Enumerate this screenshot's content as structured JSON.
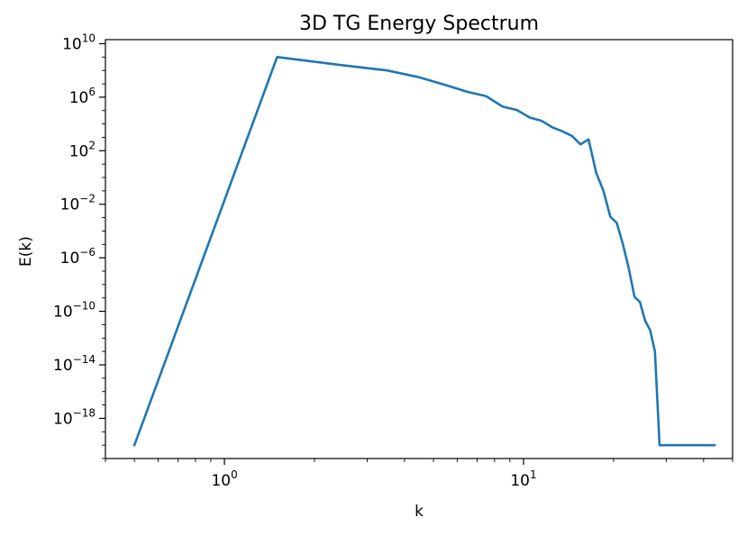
{
  "chart_data": {
    "type": "line",
    "title": "3D TG Energy Spectrum",
    "xlabel": "k",
    "ylabel": "E(k)",
    "xscale": "log",
    "yscale": "log",
    "xlim": [
      0.4,
      50
    ],
    "ylim": [
      1e-21,
      20000000000.0
    ],
    "grid": false,
    "legend": "none",
    "x_ticks": [
      {
        "value": 1,
        "base": "10",
        "exp": "0"
      },
      {
        "value": 10,
        "base": "10",
        "exp": "1"
      }
    ],
    "y_ticks": [
      {
        "value": 10000000000.0,
        "base": "10",
        "exp": "10"
      },
      {
        "value": 1000000.0,
        "base": "10",
        "exp": "6"
      },
      {
        "value": 100.0,
        "base": "10",
        "exp": "2"
      },
      {
        "value": 0.01,
        "base": "10",
        "exp": "−2"
      },
      {
        "value": 1e-06,
        "base": "10",
        "exp": "−6"
      },
      {
        "value": 1e-10,
        "base": "10",
        "exp": "−10"
      },
      {
        "value": 1e-14,
        "base": "10",
        "exp": "−14"
      },
      {
        "value": 1e-18,
        "base": "10",
        "exp": "−18"
      }
    ],
    "series": [
      {
        "color": "#1f77b4",
        "x": [
          0.5,
          1.5,
          2.5,
          3.5,
          4.5,
          5.5,
          6.5,
          7.5,
          8.5,
          9.5,
          10.5,
          11.5,
          12.5,
          13.5,
          14.5,
          15.5,
          16.5,
          17.5,
          18.5,
          19.5,
          20.5,
          21.5,
          22.5,
          23.5,
          24.5,
          25.5,
          26.5,
          27.5,
          28.5,
          29.5,
          30.5,
          31.5,
          32.5,
          33.5,
          34.5,
          35.5,
          36.5,
          37.5,
          38.5,
          39.5,
          40.5,
          41.5,
          42.5,
          43.5
        ],
        "y": [
          1e-20,
          1000000000.0,
          240000000.0,
          100000000.0,
          30000000.0,
          8000000.0,
          2500000.0,
          1200000.0,
          200000.0,
          110000.0,
          30000.0,
          17000.0,
          5500.0,
          2800.0,
          1300.0,
          300.0,
          700.0,
          2.2,
          0.1,
          0.0012,
          0.0004,
          1e-05,
          1.5e-07,
          1.2e-09,
          5e-10,
          2e-11,
          4e-12,
          1e-13,
          1e-20,
          1e-20,
          1e-20,
          1e-20,
          1e-20,
          1e-20,
          1e-20,
          1e-20,
          1e-20,
          1e-20,
          1e-20,
          1e-20,
          1e-20,
          1e-20,
          1e-20,
          1e-20
        ]
      }
    ]
  }
}
